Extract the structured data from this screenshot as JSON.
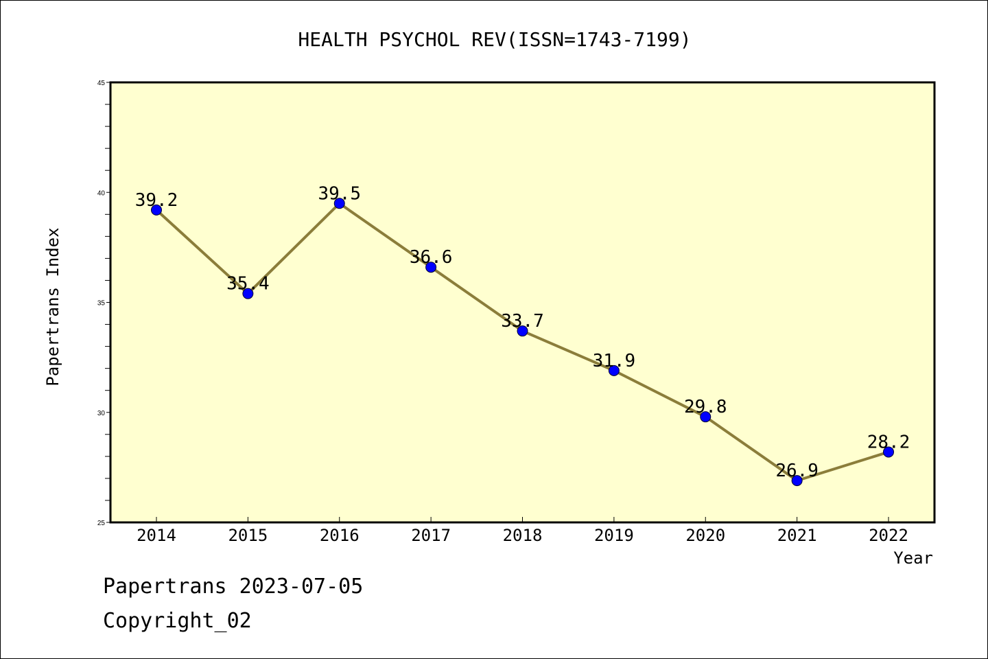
{
  "chart_data": {
    "type": "line",
    "title": "HEALTH PSYCHOL REV(ISSN=1743-7199)",
    "xlabel": "Year",
    "ylabel": "Papertrans Index",
    "x": [
      "2014",
      "2015",
      "2016",
      "2017",
      "2018",
      "2019",
      "2020",
      "2021",
      "2022"
    ],
    "series": [
      {
        "values": [
          39.2,
          35.4,
          39.5,
          36.6,
          33.7,
          31.9,
          29.8,
          26.9,
          28.2
        ]
      }
    ],
    "data_labels": [
      "39.2",
      "35.4",
      "39.5",
      "36.6",
      "33.7",
      "31.9",
      "29.8",
      "26.9",
      "28.2"
    ],
    "ylim": [
      25,
      45
    ],
    "yticks": [
      "25",
      "30",
      "35",
      "40",
      "45"
    ],
    "grid": false,
    "colors": {
      "plot_background": "#ffffd0",
      "line": "#8b7d3a",
      "marker": "#0000ff"
    }
  },
  "footer": {
    "line1": "Papertrans 2023-07-05",
    "line2": "Copyright_02"
  }
}
